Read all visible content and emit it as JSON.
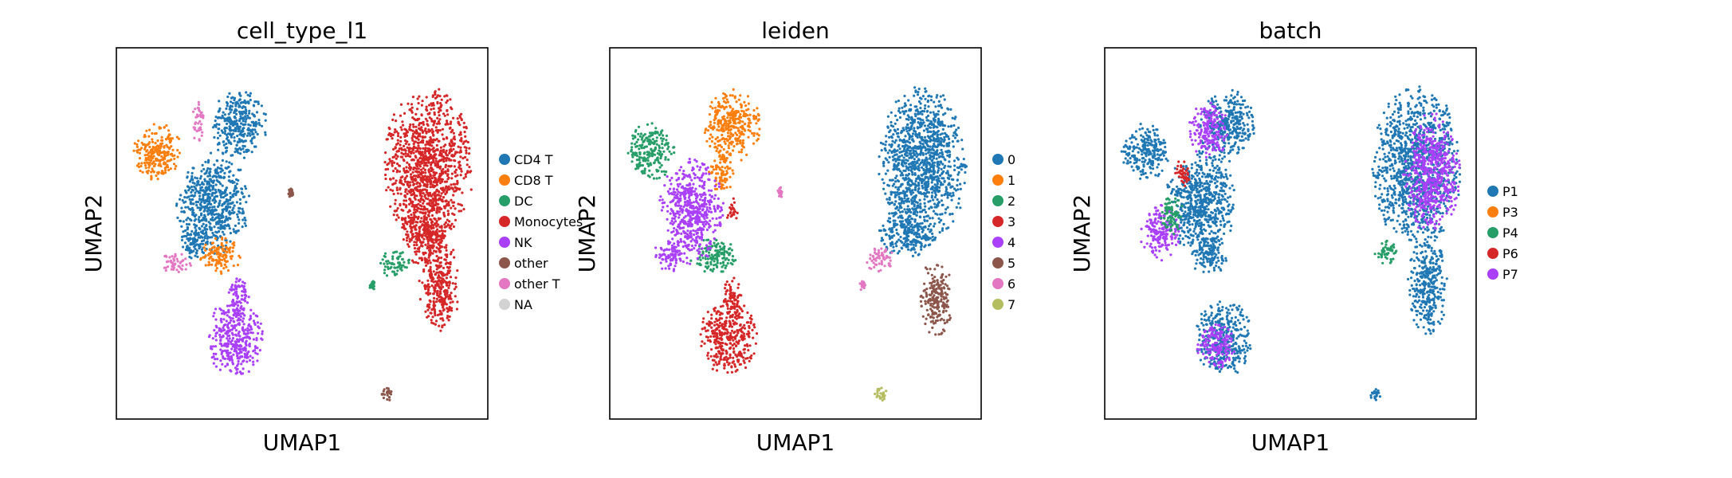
{
  "colors": {
    "blue": "#1f77b4",
    "orange": "#ff7f0e",
    "green": "#279e68",
    "red": "#d62728",
    "purple": "#aa40fc",
    "brown": "#8c564b",
    "pink": "#e377c2",
    "olive": "#b5bd61",
    "gray": "#d3d3d3"
  },
  "chart_data": [
    {
      "type": "scatter",
      "title": "cell_type_l1",
      "xlabel": "UMAP1",
      "ylabel": "UMAP2",
      "ticks": "none",
      "legend_position": "right",
      "categories": [
        {
          "label": "CD4 T",
          "color": "#1f77b4"
        },
        {
          "label": "CD8 T",
          "color": "#ff7f0e"
        },
        {
          "label": "DC",
          "color": "#279e68"
        },
        {
          "label": "Monocytes",
          "color": "#d62728"
        },
        {
          "label": "NK",
          "color": "#aa40fc"
        },
        {
          "label": "other",
          "color": "#8c564b"
        },
        {
          "label": "other T",
          "color": "#e377c2"
        },
        {
          "label": "NA",
          "color": "#d3d3d3"
        }
      ],
      "clusters": [
        {
          "category": "CD4 T",
          "cx": 0.33,
          "cy": 0.79,
          "rx": 0.07,
          "ry": 0.09
        },
        {
          "category": "CD4 T",
          "cx": 0.26,
          "cy": 0.58,
          "rx": 0.09,
          "ry": 0.13
        },
        {
          "category": "CD4 T",
          "cx": 0.21,
          "cy": 0.47,
          "rx": 0.04,
          "ry": 0.04
        },
        {
          "category": "CD8 T",
          "cx": 0.11,
          "cy": 0.72,
          "rx": 0.06,
          "ry": 0.07
        },
        {
          "category": "CD8 T",
          "cx": 0.28,
          "cy": 0.44,
          "rx": 0.05,
          "ry": 0.045
        },
        {
          "category": "other T",
          "cx": 0.16,
          "cy": 0.42,
          "rx": 0.04,
          "ry": 0.025
        },
        {
          "category": "other T",
          "cx": 0.22,
          "cy": 0.8,
          "rx": 0.015,
          "ry": 0.05
        },
        {
          "category": "NK",
          "cx": 0.32,
          "cy": 0.22,
          "rx": 0.07,
          "ry": 0.1
        },
        {
          "category": "NK",
          "cx": 0.33,
          "cy": 0.33,
          "rx": 0.025,
          "ry": 0.05
        },
        {
          "category": "Monocytes",
          "cx": 0.84,
          "cy": 0.68,
          "rx": 0.11,
          "ry": 0.2
        },
        {
          "category": "Monocytes",
          "cx": 0.87,
          "cy": 0.36,
          "rx": 0.05,
          "ry": 0.12
        },
        {
          "category": "Monocytes",
          "cx": 0.83,
          "cy": 0.5,
          "rx": 0.06,
          "ry": 0.08
        },
        {
          "category": "DC",
          "cx": 0.75,
          "cy": 0.42,
          "rx": 0.04,
          "ry": 0.035
        },
        {
          "category": "DC",
          "cx": 0.69,
          "cy": 0.36,
          "rx": 0.008,
          "ry": 0.012
        },
        {
          "category": "other",
          "cx": 0.73,
          "cy": 0.07,
          "rx": 0.015,
          "ry": 0.02
        },
        {
          "category": "other",
          "cx": 0.47,
          "cy": 0.61,
          "rx": 0.008,
          "ry": 0.015
        }
      ]
    },
    {
      "type": "scatter",
      "title": "leiden",
      "xlabel": "UMAP1",
      "ylabel": "UMAP2",
      "ticks": "none",
      "legend_position": "right",
      "categories": [
        {
          "label": "0",
          "color": "#1f77b4"
        },
        {
          "label": "1",
          "color": "#ff7f0e"
        },
        {
          "label": "2",
          "color": "#279e68"
        },
        {
          "label": "3",
          "color": "#d62728"
        },
        {
          "label": "4",
          "color": "#aa40fc"
        },
        {
          "label": "5",
          "color": "#8c564b"
        },
        {
          "label": "6",
          "color": "#e377c2"
        },
        {
          "label": "7",
          "color": "#b5bd61"
        }
      ],
      "clusters": [
        {
          "category": "1",
          "cx": 0.33,
          "cy": 0.79,
          "rx": 0.07,
          "ry": 0.09
        },
        {
          "category": "1",
          "cx": 0.3,
          "cy": 0.66,
          "rx": 0.03,
          "ry": 0.05
        },
        {
          "category": "2",
          "cx": 0.11,
          "cy": 0.72,
          "rx": 0.06,
          "ry": 0.07
        },
        {
          "category": "2",
          "cx": 0.28,
          "cy": 0.44,
          "rx": 0.06,
          "ry": 0.045
        },
        {
          "category": "4",
          "cx": 0.22,
          "cy": 0.56,
          "rx": 0.08,
          "ry": 0.13
        },
        {
          "category": "4",
          "cx": 0.16,
          "cy": 0.44,
          "rx": 0.04,
          "ry": 0.04
        },
        {
          "category": "3",
          "cx": 0.32,
          "cy": 0.22,
          "rx": 0.07,
          "ry": 0.1
        },
        {
          "category": "3",
          "cx": 0.33,
          "cy": 0.33,
          "rx": 0.025,
          "ry": 0.05
        },
        {
          "category": "3",
          "cx": 0.33,
          "cy": 0.56,
          "rx": 0.015,
          "ry": 0.035
        },
        {
          "category": "0",
          "cx": 0.84,
          "cy": 0.68,
          "rx": 0.11,
          "ry": 0.2
        },
        {
          "category": "0",
          "cx": 0.8,
          "cy": 0.5,
          "rx": 0.07,
          "ry": 0.06
        },
        {
          "category": "5",
          "cx": 0.88,
          "cy": 0.33,
          "rx": 0.04,
          "ry": 0.1
        },
        {
          "category": "6",
          "cx": 0.73,
          "cy": 0.43,
          "rx": 0.04,
          "ry": 0.03
        },
        {
          "category": "6",
          "cx": 0.68,
          "cy": 0.36,
          "rx": 0.008,
          "ry": 0.012
        },
        {
          "category": "6",
          "cx": 0.46,
          "cy": 0.61,
          "rx": 0.008,
          "ry": 0.015
        },
        {
          "category": "7",
          "cx": 0.73,
          "cy": 0.07,
          "rx": 0.015,
          "ry": 0.02
        }
      ]
    },
    {
      "type": "scatter",
      "title": "batch",
      "xlabel": "UMAP1",
      "ylabel": "UMAP2",
      "ticks": "none",
      "legend_position": "right",
      "categories": [
        {
          "label": "P1",
          "color": "#1f77b4"
        },
        {
          "label": "P3",
          "color": "#ff7f0e"
        },
        {
          "label": "P4",
          "color": "#279e68"
        },
        {
          "label": "P6",
          "color": "#d62728"
        },
        {
          "label": "P7",
          "color": "#aa40fc"
        }
      ],
      "clusters": [
        {
          "category": "P1",
          "cx": 0.33,
          "cy": 0.79,
          "rx": 0.07,
          "ry": 0.09
        },
        {
          "category": "P1",
          "cx": 0.26,
          "cy": 0.58,
          "rx": 0.09,
          "ry": 0.13
        },
        {
          "category": "P1",
          "cx": 0.11,
          "cy": 0.72,
          "rx": 0.06,
          "ry": 0.07
        },
        {
          "category": "P1",
          "cx": 0.28,
          "cy": 0.44,
          "rx": 0.05,
          "ry": 0.045
        },
        {
          "category": "P1",
          "cx": 0.32,
          "cy": 0.22,
          "rx": 0.07,
          "ry": 0.1
        },
        {
          "category": "P1",
          "cx": 0.84,
          "cy": 0.68,
          "rx": 0.11,
          "ry": 0.2
        },
        {
          "category": "P1",
          "cx": 0.87,
          "cy": 0.36,
          "rx": 0.05,
          "ry": 0.12
        },
        {
          "category": "P7",
          "cx": 0.88,
          "cy": 0.66,
          "rx": 0.07,
          "ry": 0.15
        },
        {
          "category": "P7",
          "cx": 0.28,
          "cy": 0.78,
          "rx": 0.05,
          "ry": 0.07
        },
        {
          "category": "P7",
          "cx": 0.15,
          "cy": 0.5,
          "rx": 0.05,
          "ry": 0.07
        },
        {
          "category": "P7",
          "cx": 0.3,
          "cy": 0.2,
          "rx": 0.05,
          "ry": 0.06
        },
        {
          "category": "P4",
          "cx": 0.18,
          "cy": 0.55,
          "rx": 0.03,
          "ry": 0.05
        },
        {
          "category": "P4",
          "cx": 0.76,
          "cy": 0.45,
          "rx": 0.03,
          "ry": 0.03
        },
        {
          "category": "P1",
          "cx": 0.73,
          "cy": 0.07,
          "rx": 0.015,
          "ry": 0.02
        },
        {
          "category": "P6",
          "cx": 0.21,
          "cy": 0.66,
          "rx": 0.02,
          "ry": 0.04
        }
      ]
    }
  ]
}
